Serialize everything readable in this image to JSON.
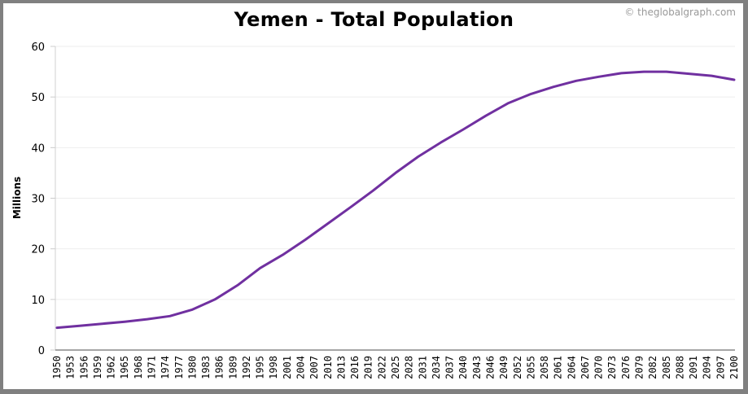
{
  "header": {
    "title": "Yemen - Total Population",
    "credit": "© theglobalgraph.com"
  },
  "colors": {
    "line": "#7030a0",
    "gridline": "#eeeeee",
    "axis": "#888888",
    "frame": "#808080"
  },
  "chart_data": {
    "type": "line",
    "title": "Yemen - Total Population",
    "xlabel": "",
    "ylabel": "Millions",
    "ylim": [
      0,
      60
    ],
    "yticks": [
      0,
      10,
      20,
      30,
      40,
      50,
      60
    ],
    "xlim": [
      1950,
      2100
    ],
    "xtick_labels": [
      "1950",
      "1953",
      "1956",
      "1959",
      "1962",
      "1965",
      "1968",
      "1971",
      "1974",
      "1977",
      "1980",
      "1983",
      "1986",
      "1989",
      "1992",
      "1995",
      "1998",
      "2001",
      "2004",
      "2007",
      "2010",
      "2013",
      "2016",
      "2019",
      "2022",
      "2025",
      "2028",
      "2031",
      "2034",
      "2037",
      "2040",
      "2043",
      "2046",
      "2049",
      "2052",
      "2055",
      "2058",
      "2061",
      "2064",
      "2067",
      "2070",
      "2073",
      "2076",
      "2079",
      "2082",
      "2085",
      "2088",
      "2091",
      "2094",
      "2097",
      "2100"
    ],
    "grid": true,
    "legend": "none",
    "series": [
      {
        "name": "Total Population (Millions)",
        "x": [
          1950,
          1955,
          1960,
          1965,
          1970,
          1975,
          1980,
          1985,
          1990,
          1995,
          2000,
          2005,
          2010,
          2015,
          2020,
          2025,
          2030,
          2035,
          2040,
          2045,
          2050,
          2055,
          2060,
          2065,
          2070,
          2075,
          2080,
          2085,
          2090,
          2095,
          2100
        ],
        "values": [
          4.4,
          4.8,
          5.2,
          5.6,
          6.1,
          6.7,
          8.0,
          10.0,
          12.8,
          16.2,
          18.8,
          21.8,
          25.0,
          28.2,
          31.5,
          35.0,
          38.2,
          41.0,
          43.6,
          46.3,
          48.8,
          50.6,
          52.0,
          53.2,
          54.0,
          54.7,
          55.0,
          55.0,
          54.6,
          54.2,
          53.4
        ]
      }
    ]
  }
}
